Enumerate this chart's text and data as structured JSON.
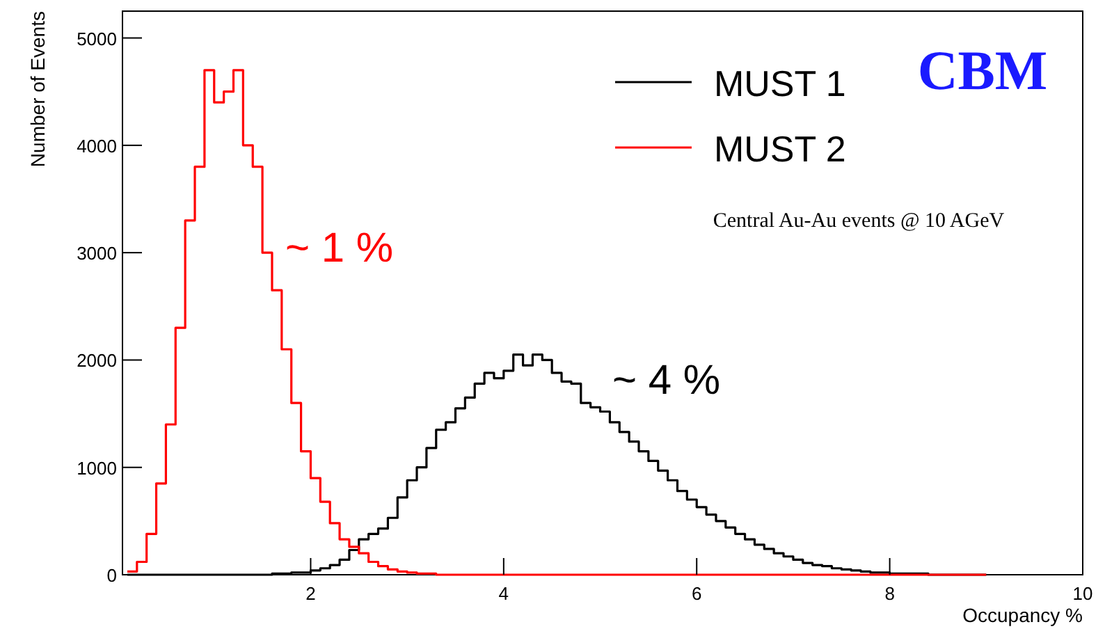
{
  "chart_data": {
    "type": "step",
    "xlabel": "Occupancy %",
    "ylabel": "Number of Events",
    "annotations": [
      "CBM",
      "Central Au-Au events @ 10 AGeV",
      "~ 1 %",
      "~ 4 %"
    ],
    "x": [
      0.1,
      0.2,
      0.3,
      0.4,
      0.5,
      0.6,
      0.7,
      0.8,
      0.9,
      1.0,
      1.1,
      1.2,
      1.3,
      1.4,
      1.5,
      1.6,
      1.7,
      1.8,
      1.9,
      2.0,
      2.1,
      2.2,
      2.3,
      2.4,
      2.5,
      2.6,
      2.7,
      2.8,
      2.9,
      3.0,
      3.1,
      3.2,
      3.3,
      3.4,
      3.5,
      3.6,
      3.7,
      3.8,
      3.9,
      4.0,
      4.1,
      4.2,
      4.3,
      4.4,
      4.5,
      4.6,
      4.7,
      4.8,
      4.9,
      5.0,
      5.1,
      5.2,
      5.3,
      5.4,
      5.5,
      5.6,
      5.7,
      5.8,
      5.9,
      6.0,
      6.1,
      6.2,
      6.3,
      6.4,
      6.5,
      6.6,
      6.7,
      6.8,
      6.9,
      7.0,
      7.1,
      7.2,
      7.3,
      7.4,
      7.5,
      7.6,
      7.7,
      7.8,
      7.9,
      8.0,
      8.1,
      8.2,
      8.3,
      8.4,
      8.5,
      8.6,
      8.7,
      8.8,
      8.9,
      9.0
    ],
    "series": [
      {
        "name": "MUST 1",
        "color": "#000000",
        "values": [
          0,
          0,
          0,
          0,
          0,
          0,
          0,
          0,
          0,
          0,
          0,
          0,
          0,
          0,
          0,
          10,
          10,
          20,
          20,
          40,
          60,
          90,
          140,
          230,
          330,
          380,
          430,
          530,
          720,
          880,
          1000,
          1180,
          1350,
          1420,
          1550,
          1650,
          1780,
          1880,
          1830,
          1900,
          2050,
          1950,
          2050,
          2000,
          1880,
          1800,
          1780,
          1600,
          1560,
          1520,
          1420,
          1330,
          1240,
          1150,
          1060,
          970,
          880,
          780,
          700,
          630,
          560,
          500,
          440,
          380,
          330,
          280,
          240,
          200,
          170,
          140,
          110,
          90,
          80,
          60,
          50,
          40,
          30,
          20,
          20,
          10,
          10,
          10,
          10,
          0,
          0,
          0,
          0,
          0,
          0,
          0
        ]
      },
      {
        "name": "MUST 2",
        "color": "#ff0000",
        "values": [
          30,
          120,
          380,
          850,
          1400,
          2300,
          3300,
          3800,
          4700,
          4400,
          4500,
          4700,
          4000,
          3800,
          3000,
          2650,
          2100,
          1600,
          1150,
          900,
          680,
          480,
          330,
          260,
          200,
          120,
          80,
          50,
          30,
          20,
          10,
          10,
          0,
          0,
          0,
          0,
          0,
          0,
          0,
          0,
          0,
          0,
          0,
          0,
          0,
          0,
          0,
          0,
          0,
          0,
          0,
          0,
          0,
          0,
          0,
          0,
          0,
          0,
          0,
          0,
          0,
          0,
          0,
          0,
          0,
          0,
          0,
          0,
          0,
          0,
          0,
          0,
          0,
          0,
          0,
          0,
          0,
          0,
          0,
          0,
          0,
          0,
          0,
          0,
          0,
          0,
          0,
          0,
          0,
          0
        ]
      }
    ],
    "xlim": [
      0.05,
      10
    ],
    "ylim": [
      0,
      5250
    ],
    "xticks": [
      2,
      4,
      6,
      8,
      10
    ],
    "yticks": [
      0,
      1000,
      2000,
      3000,
      4000,
      5000
    ],
    "legend": "top right"
  }
}
